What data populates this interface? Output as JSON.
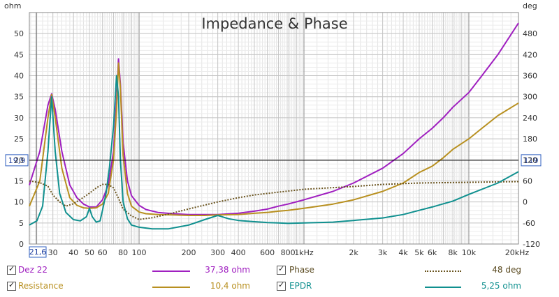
{
  "chart_data": {
    "type": "line",
    "title": "Impedance & Phase",
    "xscale": "log",
    "x_unit": "Hz",
    "xlim": [
      21.6,
      20000
    ],
    "x_ticks": [
      "21,6",
      "30",
      "40",
      "50",
      "60",
      "80",
      "100",
      "200",
      "300",
      "400",
      "600",
      "800",
      "1kHz",
      "2k",
      "3k",
      "4k",
      "5k",
      "6k",
      "8k",
      "10k",
      "20kHz"
    ],
    "y_left": {
      "label": "ohm",
      "ylim": [
        0,
        55
      ],
      "ticks": [
        "0",
        "5",
        "10",
        "15",
        "20",
        "25",
        "30",
        "35",
        "40",
        "45",
        "50"
      ]
    },
    "y_right": {
      "label": "deg",
      "ylim": [
        -120,
        540
      ],
      "ticks": [
        "-120",
        "-60",
        "0",
        "60",
        "120",
        "180",
        "240",
        "300",
        "360",
        "420",
        "480"
      ]
    },
    "cursor": {
      "left_label": "19,9",
      "right_label": "119",
      "ohm": 19.9
    },
    "grid": true,
    "series": [
      {
        "name": "Dez 22",
        "color": "#a020c0",
        "style": "solid",
        "axis": "left",
        "x": [
          21.6,
          25,
          28,
          29.5,
          31,
          34,
          38,
          42,
          46,
          50,
          55,
          60,
          65,
          70,
          73,
          75,
          77,
          80,
          85,
          90,
          100,
          110,
          130,
          160,
          200,
          250,
          300,
          400,
          500,
          600,
          700,
          800,
          1000,
          1500,
          2000,
          3000,
          4000,
          5000,
          6000,
          7000,
          8000,
          10000,
          12000,
          15000,
          20000
        ],
        "values": [
          14,
          22,
          33,
          35.7,
          32,
          22,
          14,
          11,
          9.5,
          8.8,
          8.8,
          10.5,
          14,
          22,
          34,
          44,
          38,
          24,
          15,
          11.5,
          9.2,
          8.2,
          7.5,
          7.2,
          7.0,
          7.0,
          7.0,
          7.3,
          7.8,
          8.3,
          9.0,
          9.5,
          10.5,
          12.5,
          14.5,
          18.0,
          21.5,
          25.0,
          27.5,
          30.0,
          32.5,
          36.0,
          40.0,
          45.0,
          52.5
        ]
      },
      {
        "name": "Resistance",
        "color": "#b89020",
        "style": "solid",
        "axis": "left",
        "x": [
          21.6,
          25,
          28,
          29.5,
          31,
          34,
          38,
          42,
          46,
          50,
          55,
          60,
          65,
          70,
          73,
          75,
          77,
          80,
          85,
          90,
          100,
          110,
          130,
          160,
          200,
          250,
          300,
          400,
          500,
          600,
          700,
          800,
          1000,
          1500,
          2000,
          3000,
          4000,
          5000,
          6000,
          7000,
          8000,
          10000,
          12000,
          15000,
          20000
        ],
        "values": [
          9,
          15,
          30,
          35.5,
          30,
          18,
          11,
          9.2,
          8.6,
          8.5,
          8.6,
          9.5,
          12,
          20,
          32,
          43,
          37,
          21,
          12,
          9.0,
          7.6,
          7.2,
          7.0,
          6.9,
          6.8,
          6.8,
          6.9,
          7.0,
          7.3,
          7.5,
          7.8,
          8.0,
          8.5,
          9.5,
          10.5,
          12.5,
          14.5,
          17.0,
          18.5,
          20.5,
          22.5,
          25.0,
          27.5,
          30.5,
          33.5
        ]
      },
      {
        "name": "Phase",
        "color": "#6b5520",
        "style": "dotted",
        "axis": "right",
        "x": [
          21.6,
          25,
          28,
          30,
          33,
          36,
          40,
          45,
          50,
          55,
          60,
          65,
          70,
          75,
          80,
          90,
          100,
          120,
          150,
          200,
          300,
          400,
          500,
          700,
          1000,
          2000,
          3000,
          5000,
          10000,
          20000
        ],
        "values": [
          60,
          55,
          45,
          20,
          0,
          -12,
          -5,
          10,
          25,
          40,
          50,
          50,
          40,
          10,
          -20,
          -40,
          -50,
          -45,
          -35,
          -20,
          0,
          12,
          20,
          28,
          36,
          44,
          50,
          54,
          56,
          58
        ]
      },
      {
        "name": "EPDR",
        "color": "#10908f",
        "style": "solid",
        "axis": "left",
        "x": [
          21.6,
          24,
          26,
          28,
          29.5,
          31,
          33,
          36,
          40,
          44,
          48,
          50,
          52,
          55,
          58,
          60,
          63,
          66,
          70,
          73,
          75,
          77,
          80,
          85,
          90,
          100,
          120,
          150,
          200,
          250,
          300,
          350,
          400,
          500,
          600,
          700,
          800,
          1000,
          1500,
          2000,
          3000,
          4000,
          5000,
          6000,
          8000,
          10000,
          15000,
          20000
        ],
        "values": [
          4.5,
          5.5,
          9,
          22,
          35,
          22,
          12,
          7.5,
          5.8,
          5.5,
          6.5,
          8.5,
          6.5,
          5.2,
          5.5,
          8,
          12,
          18,
          28,
          40,
          35,
          20,
          10,
          6,
          4.5,
          4.0,
          3.6,
          3.6,
          4.5,
          5.8,
          6.8,
          6.0,
          5.6,
          5.3,
          5.1,
          5.0,
          4.9,
          5.0,
          5.2,
          5.6,
          6.2,
          7.0,
          8.0,
          8.8,
          10.2,
          11.8,
          14.5,
          17.2
        ]
      }
    ]
  },
  "legend": [
    {
      "checked": true,
      "label": "Dez 22",
      "value": "37,38 ohm",
      "color": "#a020c0"
    },
    {
      "checked": true,
      "label": "Resistance",
      "value": "10,4 ohm",
      "color": "#b89020"
    },
    {
      "checked": true,
      "label": "Phase",
      "value": "48 deg",
      "color": "#5a4a20"
    },
    {
      "checked": true,
      "label": "EPDR",
      "value": "5,25 ohm",
      "color": "#10908f"
    }
  ]
}
